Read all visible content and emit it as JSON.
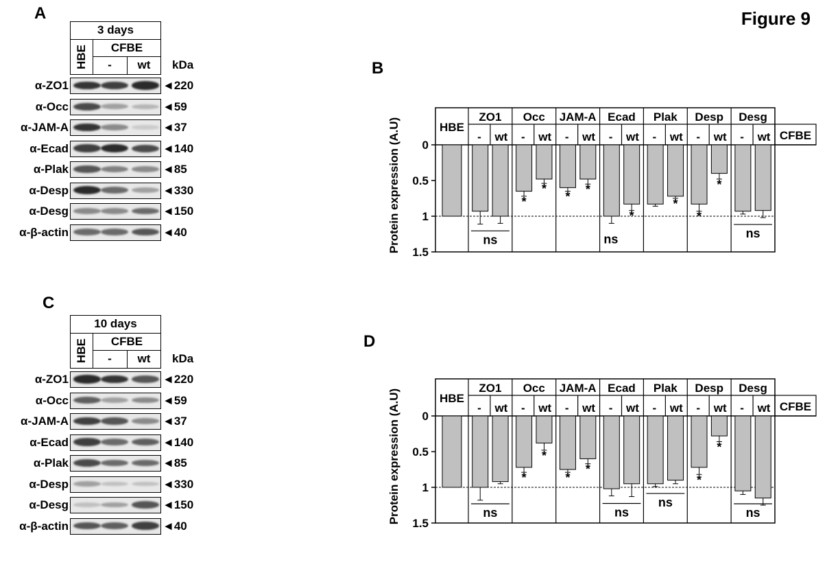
{
  "figure_title": "Figure 9",
  "panels": {
    "A": {
      "letter": "A",
      "duration": "3 days",
      "col_hbe": "HBE",
      "col_cfbe": "CFBE",
      "col_minus": "-",
      "col_wt": "wt",
      "kda_header": "kDa",
      "rows": [
        {
          "label": "α-ZO1",
          "kda": "◄220",
          "bands": [
            0.85,
            0.8,
            0.9
          ]
        },
        {
          "label": "α-Occ",
          "kda": "◄59",
          "bands": [
            0.75,
            0.35,
            0.25
          ]
        },
        {
          "label": "α-JAM-A",
          "kda": "◄37",
          "bands": [
            0.85,
            0.45,
            0.15
          ]
        },
        {
          "label": "α-Ecad",
          "kda": "◄140",
          "bands": [
            0.8,
            0.9,
            0.75
          ]
        },
        {
          "label": "α-Plak",
          "kda": "◄85",
          "bands": [
            0.7,
            0.5,
            0.45
          ]
        },
        {
          "label": "α-Desp",
          "kda": "◄330",
          "bands": [
            0.9,
            0.6,
            0.35
          ]
        },
        {
          "label": "α-Desg",
          "kda": "◄150",
          "bands": [
            0.45,
            0.45,
            0.6
          ]
        },
        {
          "label": "α-β-actin",
          "kda": "◄40",
          "bands": [
            0.6,
            0.6,
            0.7
          ]
        }
      ]
    },
    "C": {
      "letter": "C",
      "duration": "10 days",
      "col_hbe": "HBE",
      "col_cfbe": "CFBE",
      "col_minus": "-",
      "col_wt": "wt",
      "kda_header": "kDa",
      "rows": [
        {
          "label": "α-ZO1",
          "kda": "◄220",
          "bands": [
            0.9,
            0.85,
            0.7
          ]
        },
        {
          "label": "α-Occ",
          "kda": "◄59",
          "bands": [
            0.65,
            0.35,
            0.45
          ]
        },
        {
          "label": "α-JAM-A",
          "kda": "◄37",
          "bands": [
            0.8,
            0.7,
            0.45
          ]
        },
        {
          "label": "α-Ecad",
          "kda": "◄140",
          "bands": [
            0.8,
            0.6,
            0.65
          ]
        },
        {
          "label": "α-Plak",
          "kda": "◄85",
          "bands": [
            0.75,
            0.6,
            0.6
          ]
        },
        {
          "label": "α-Desp",
          "kda": "◄330",
          "bands": [
            0.35,
            0.2,
            0.2
          ]
        },
        {
          "label": "α-Desg",
          "kda": "◄150",
          "bands": [
            0.2,
            0.35,
            0.7
          ]
        },
        {
          "label": "α-β-actin",
          "kda": "◄40",
          "bands": [
            0.7,
            0.65,
            0.8
          ]
        }
      ]
    }
  },
  "chart_data": [
    {
      "panel": "B",
      "type": "bar",
      "orientation": "inverted-y",
      "ylabel": "Protein expression (A.U)",
      "ylim": [
        0,
        1.5
      ],
      "yticks": [
        "0",
        "0.5",
        "1",
        "1.5"
      ],
      "reference_line": 1,
      "cfbe_label": "CFBE",
      "hbe_label": "HBE",
      "hbe": {
        "value": 1.0,
        "error": 0
      },
      "groups": [
        {
          "name": "ZO1",
          "bars": [
            {
              "label": "-",
              "value": 0.93,
              "error": 0.18,
              "star": false
            },
            {
              "label": "wt",
              "value": 1.0,
              "error": 0.1,
              "star": false
            }
          ],
          "ns": true
        },
        {
          "name": "Occ",
          "bars": [
            {
              "label": "-",
              "value": 0.65,
              "error": 0.07,
              "star": true
            },
            {
              "label": "wt",
              "value": 0.48,
              "error": 0.06,
              "star": true
            }
          ],
          "ns": false
        },
        {
          "name": "JAM-A",
          "bars": [
            {
              "label": "-",
              "value": 0.6,
              "error": 0.05,
              "star": true
            },
            {
              "label": "wt",
              "value": 0.48,
              "error": 0.07,
              "star": true
            }
          ],
          "ns": false
        },
        {
          "name": "Ecad",
          "bars": [
            {
              "label": "-",
              "value": 1.0,
              "error": 0.1,
              "star": false
            },
            {
              "label": "wt",
              "value": 0.83,
              "error": 0.09,
              "star": true
            }
          ],
          "ns": false,
          "ns_under_first": true
        },
        {
          "name": "Plak",
          "bars": [
            {
              "label": "-",
              "value": 0.83,
              "error": 0.03,
              "star": false
            },
            {
              "label": "wt",
              "value": 0.72,
              "error": 0.03,
              "star": true
            }
          ],
          "ns": false
        },
        {
          "name": "Desp",
          "bars": [
            {
              "label": "-",
              "value": 0.83,
              "error": 0.1,
              "star": true
            },
            {
              "label": "wt",
              "value": 0.4,
              "error": 0.08,
              "star": true
            }
          ],
          "ns": false
        },
        {
          "name": "Desg",
          "bars": [
            {
              "label": "-",
              "value": 0.93,
              "error": 0.04,
              "star": false
            },
            {
              "label": "wt",
              "value": 0.92,
              "error": 0.1,
              "star": false
            }
          ],
          "ns": true
        }
      ],
      "ns_label": "ns",
      "star_label": "*"
    },
    {
      "panel": "D",
      "type": "bar",
      "orientation": "inverted-y",
      "ylabel": "Protein expression (A.U)",
      "ylim": [
        0,
        1.5
      ],
      "yticks": [
        "0",
        "0.5",
        "1",
        "1.5"
      ],
      "reference_line": 1,
      "cfbe_label": "CFBE",
      "hbe_label": "HBE",
      "hbe": {
        "value": 1.0,
        "error": 0
      },
      "groups": [
        {
          "name": "ZO1",
          "bars": [
            {
              "label": "-",
              "value": 1.0,
              "error": 0.18,
              "star": false
            },
            {
              "label": "wt",
              "value": 0.92,
              "error": 0.03,
              "star": false
            }
          ],
          "ns": true
        },
        {
          "name": "Occ",
          "bars": [
            {
              "label": "-",
              "value": 0.72,
              "error": 0.07,
              "star": true
            },
            {
              "label": "wt",
              "value": 0.38,
              "error": 0.1,
              "star": true
            }
          ],
          "ns": false
        },
        {
          "name": "JAM-A",
          "bars": [
            {
              "label": "-",
              "value": 0.75,
              "error": 0.04,
              "star": true
            },
            {
              "label": "wt",
              "value": 0.6,
              "error": 0.07,
              "star": true
            }
          ],
          "ns": false
        },
        {
          "name": "Ecad",
          "bars": [
            {
              "label": "-",
              "value": 1.02,
              "error": 0.1,
              "star": false
            },
            {
              "label": "wt",
              "value": 0.95,
              "error": 0.18,
              "star": false
            }
          ],
          "ns": true
        },
        {
          "name": "Plak",
          "bars": [
            {
              "label": "-",
              "value": 0.95,
              "error": 0.04,
              "star": false
            },
            {
              "label": "wt",
              "value": 0.9,
              "error": 0.05,
              "star": false
            }
          ],
          "ns": true
        },
        {
          "name": "Desp",
          "bars": [
            {
              "label": "-",
              "value": 0.72,
              "error": 0.1,
              "star": true
            },
            {
              "label": "wt",
              "value": 0.28,
              "error": 0.08,
              "star": true
            }
          ],
          "ns": false
        },
        {
          "name": "Desg",
          "bars": [
            {
              "label": "-",
              "value": 1.05,
              "error": 0.05,
              "star": false
            },
            {
              "label": "wt",
              "value": 1.15,
              "error": 0.1,
              "star": false
            }
          ],
          "ns": true
        }
      ],
      "ns_label": "ns",
      "star_label": "*"
    }
  ],
  "panel_letters": {
    "B": "B",
    "D": "D"
  }
}
